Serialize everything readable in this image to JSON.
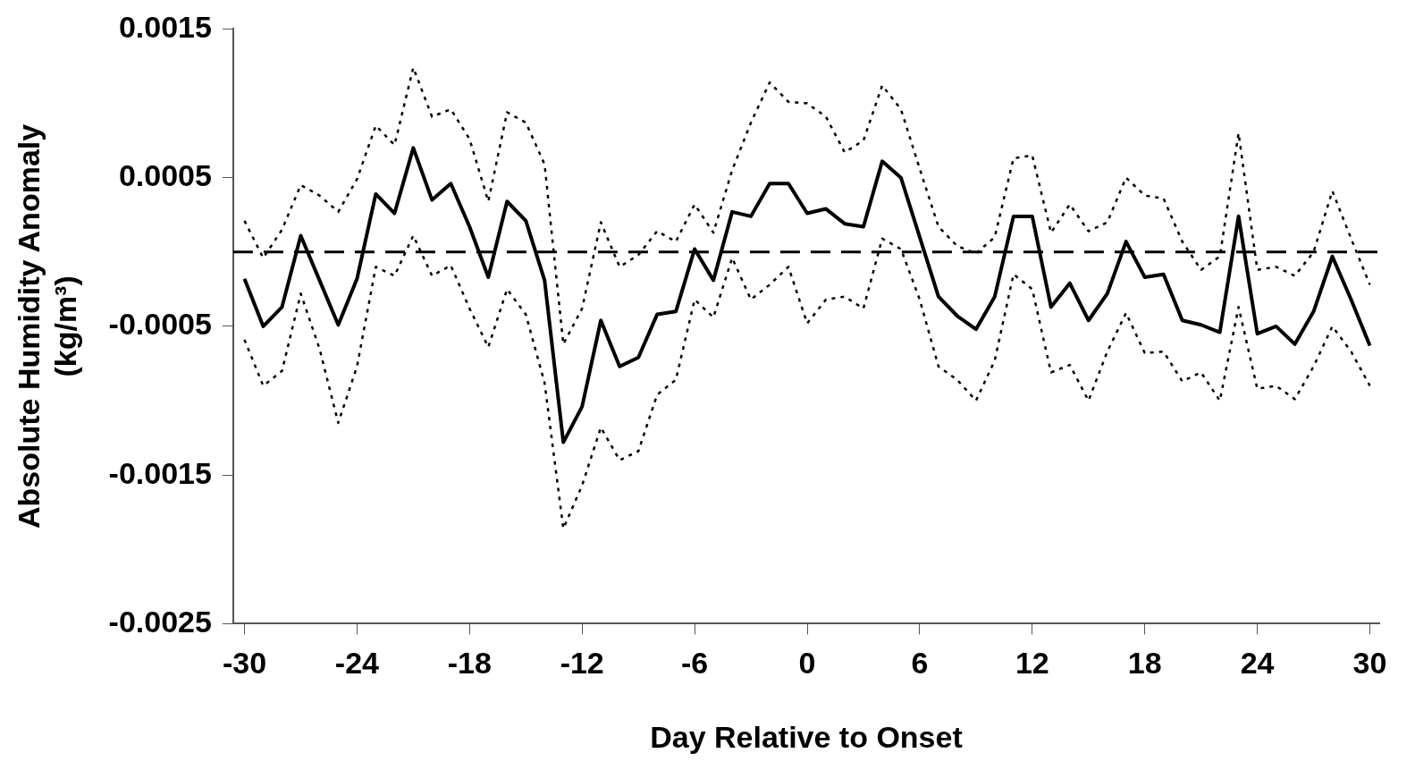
{
  "chart_data": {
    "type": "line",
    "xlabel": "Day Relative to Onset",
    "ylabel": "Absolute Humidity Anomaly\n(kg/m³)",
    "x": [
      -30,
      -29,
      -28,
      -27,
      -26,
      -25,
      -24,
      -23,
      -22,
      -21,
      -20,
      -19,
      -18,
      -17,
      -16,
      -15,
      -14,
      -13,
      -12,
      -11,
      -10,
      -9,
      -8,
      -7,
      -6,
      -5,
      -4,
      -3,
      -2,
      -1,
      0,
      1,
      2,
      3,
      4,
      5,
      6,
      7,
      8,
      9,
      10,
      11,
      12,
      13,
      14,
      15,
      16,
      17,
      18,
      19,
      20,
      21,
      22,
      23,
      24,
      25,
      26,
      27,
      28,
      29,
      30
    ],
    "series": [
      {
        "color": "#000000",
        "line_style": "solid",
        "values": [
          -0.00018,
          -0.0005,
          -0.00037,
          0.00011,
          -0.00019,
          -0.00049,
          -0.00018,
          0.00039,
          0.00026,
          0.0007,
          0.00035,
          0.00046,
          0.00017,
          -0.00017,
          0.00034,
          0.00021,
          -0.00019,
          -0.00128,
          -0.00104,
          -0.00046,
          -0.00077,
          -0.00071,
          -0.00042,
          -0.0004,
          2e-05,
          -0.00019,
          0.00027,
          0.00024,
          0.00046,
          0.00046,
          0.00026,
          0.00029,
          0.00019,
          0.00017,
          0.00061,
          0.0005,
          0.0001,
          -0.0003,
          -0.00043,
          -0.00052,
          -0.0003,
          0.00024,
          0.00024,
          -0.00037,
          -0.00021,
          -0.00046,
          -0.00028,
          7e-05,
          -0.00017,
          -0.00015,
          -0.00046,
          -0.00049,
          -0.00054,
          0.00024,
          -0.00055,
          -0.0005,
          -0.00062,
          -0.0004,
          -3e-05,
          -0.00032,
          -0.00063
        ]
      },
      {
        "color": "#000000",
        "line_style": "dotted",
        "values": [
          0.00021,
          -4e-05,
          0.00015,
          0.00045,
          0.00038,
          0.00027,
          0.00049,
          0.00085,
          0.00072,
          0.00124,
          0.00091,
          0.00096,
          0.00076,
          0.00034,
          0.00094,
          0.00087,
          0.00059,
          -0.00062,
          -0.00038,
          0.0002,
          -0.0001,
          -2e-05,
          0.00014,
          7e-05,
          0.00032,
          0.00013,
          0.00055,
          0.00087,
          0.00114,
          0.00101,
          0.001,
          0.00091,
          0.00067,
          0.00075,
          0.00112,
          0.00096,
          0.00056,
          0.00017,
          4e-05,
          -1e-05,
          0.0001,
          0.00063,
          0.00065,
          0.00013,
          0.00032,
          0.00014,
          0.0002,
          0.0005,
          0.00038,
          0.00036,
          7e-05,
          -0.00012,
          -3e-05,
          0.0008,
          -0.00012,
          -0.0001,
          -0.00016,
          0,
          0.00041,
          9e-05,
          -0.00022
        ]
      },
      {
        "color": "#000000",
        "line_style": "dotted",
        "values": [
          -0.00059,
          -0.0009,
          -0.0008,
          -0.00028,
          -0.00065,
          -0.00115,
          -0.00077,
          -0.0001,
          -0.00016,
          0.00011,
          -0.00016,
          -9e-05,
          -0.00038,
          -0.00064,
          -0.00025,
          -0.00042,
          -0.00088,
          -0.00186,
          -0.00157,
          -0.00118,
          -0.0014,
          -0.00134,
          -0.00096,
          -0.00086,
          -0.00032,
          -0.00044,
          -4e-05,
          -0.00032,
          -0.00022,
          -0.0001,
          -0.00048,
          -0.00032,
          -0.0003,
          -0.00038,
          9e-05,
          2e-05,
          -0.00032,
          -0.00077,
          -0.00086,
          -0.001,
          -0.00073,
          -0.00015,
          -0.00025,
          -0.00081,
          -0.00076,
          -0.001,
          -0.00067,
          -0.00041,
          -0.00068,
          -0.00067,
          -0.00087,
          -0.00081,
          -0.001,
          -0.00037,
          -0.00092,
          -0.0009,
          -0.00099,
          -0.00077,
          -0.0005,
          -0.00067,
          -0.0009
        ]
      }
    ],
    "xlim": [
      -30.6,
      30.5
    ],
    "xticks": [
      -30,
      -24,
      -18,
      -12,
      -6,
      0,
      6,
      12,
      18,
      24,
      30
    ],
    "ylim": [
      -0.0025,
      0.0015
    ],
    "yticks": [
      -0.0025,
      -0.0015,
      -0.0005,
      0.0005,
      0.0015
    ],
    "ref_lines": [
      {
        "axis": "y",
        "value": 0,
        "color": "#000000",
        "line_style": "dashed"
      }
    ],
    "grid": false,
    "legend": false,
    "marker": "none"
  }
}
